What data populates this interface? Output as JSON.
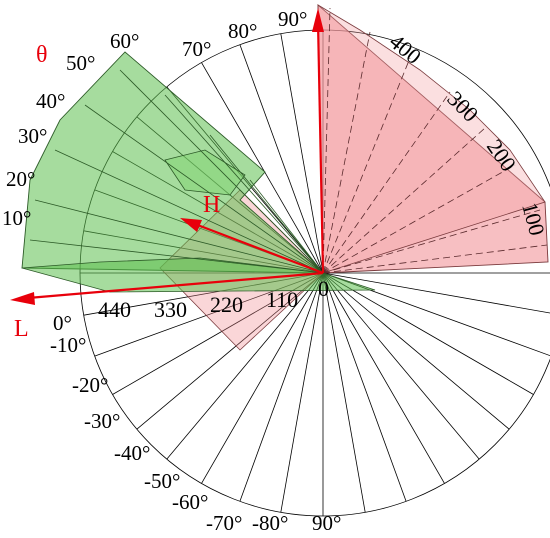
{
  "labels": {
    "theta": "θ",
    "h_axis": "H",
    "l_axis": "L",
    "origin": "0"
  },
  "upper_angles": [
    "10°",
    "20°",
    "30°",
    "40°",
    "50°",
    "60°",
    "70°",
    "80°",
    "90°"
  ],
  "lower_angles": [
    "0°",
    "-10°",
    "-20°",
    "-30°",
    "-40°",
    "-50°",
    "-60°",
    "-70°",
    "-80°",
    "90°"
  ],
  "l_ticks": [
    "440",
    "330",
    "220",
    "110"
  ],
  "h_ticks": [
    "100",
    "200",
    "300",
    "400"
  ],
  "colors": {
    "axis_red": "#e8000b",
    "green_fill": "#5cc04f",
    "pink_fill": "#f08a8f",
    "grid": "#000000"
  }
}
